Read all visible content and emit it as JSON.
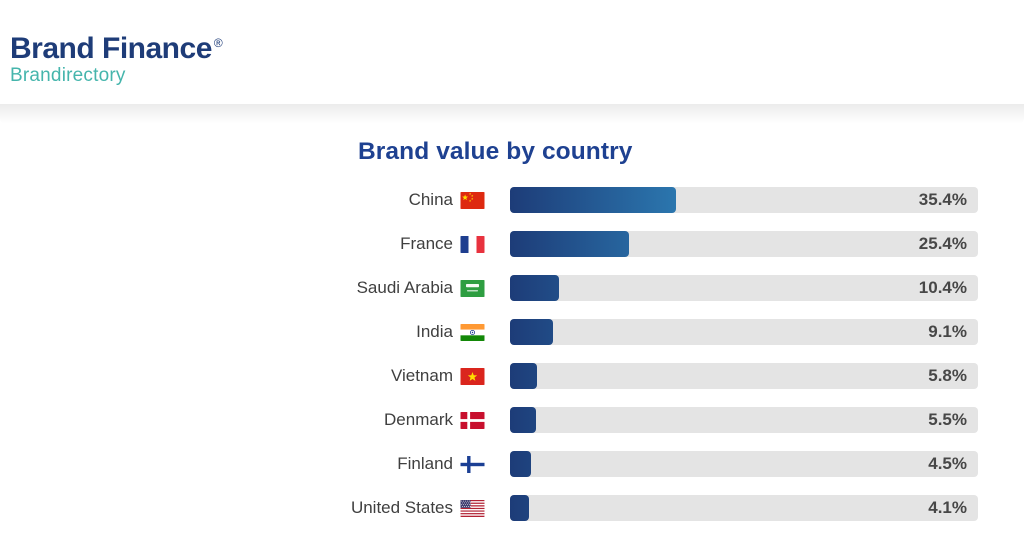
{
  "logo": {
    "brand": "Brand Finance",
    "registered": "®",
    "sub": "Brandirectory",
    "brand_color": "#1e3c78",
    "sub_color": "#45b5ac"
  },
  "chart_data": {
    "type": "bar",
    "orientation": "horizontal",
    "title": "Brand value by country",
    "title_color": "#1e4191",
    "categories": [
      "China",
      "France",
      "Saudi Arabia",
      "India",
      "Vietnam",
      "Denmark",
      "Finland",
      "United States"
    ],
    "values": [
      35.4,
      25.4,
      10.4,
      9.1,
      5.8,
      5.5,
      4.5,
      4.1
    ],
    "value_labels": [
      "35.4%",
      "25.4%",
      "10.4%",
      "9.1%",
      "5.8%",
      "5.5%",
      "4.5%",
      "4.1%"
    ],
    "xlim": [
      0,
      100
    ],
    "grid": false,
    "legend": false,
    "bar_gradient": [
      "#1d3c78",
      "#2e82b9"
    ],
    "track_color": "#e4e4e4"
  },
  "rows": [
    {
      "label": "China",
      "flag": "cn",
      "value": 35.4,
      "display": "35.4%"
    },
    {
      "label": "France",
      "flag": "fr",
      "value": 25.4,
      "display": "25.4%"
    },
    {
      "label": "Saudi Arabia",
      "flag": "sa",
      "value": 10.4,
      "display": "10.4%"
    },
    {
      "label": "India",
      "flag": "in",
      "value": 9.1,
      "display": "9.1%"
    },
    {
      "label": "Vietnam",
      "flag": "vn",
      "value": 5.8,
      "display": "5.8%"
    },
    {
      "label": "Denmark",
      "flag": "dk",
      "value": 5.5,
      "display": "5.5%"
    },
    {
      "label": "Finland",
      "flag": "fi",
      "value": 4.5,
      "display": "4.5%"
    },
    {
      "label": "United States",
      "flag": "us",
      "value": 4.1,
      "display": "4.1%"
    }
  ]
}
